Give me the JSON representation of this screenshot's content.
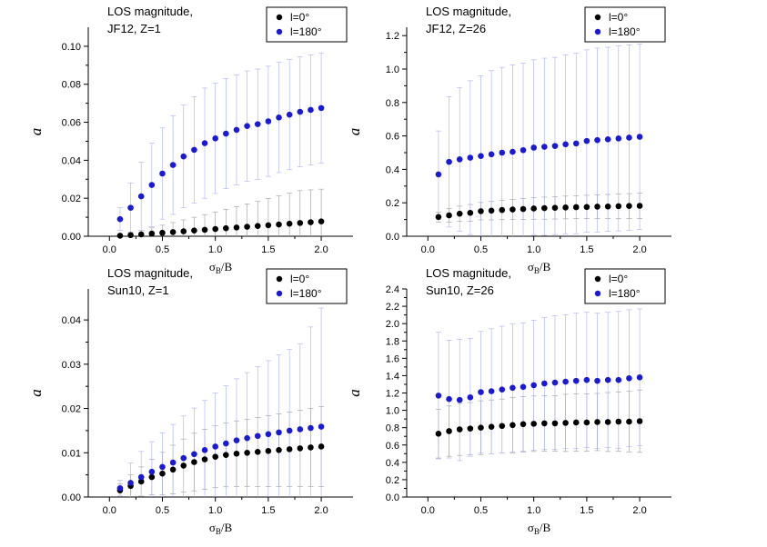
{
  "chart_data": [
    {
      "type": "scatter",
      "annotation": [
        "LOS magnitude,",
        "JF12, Z=1"
      ],
      "xlabel": "σB/B",
      "ylabel": "a",
      "xlim": [
        -0.2,
        2.3
      ],
      "ylim": [
        0,
        0.11
      ],
      "xticks": [
        0.0,
        0.5,
        1.0,
        1.5,
        2.0
      ],
      "xtick_labels": [
        "0.0",
        "0.5",
        "1.0",
        "1.5",
        "2.0"
      ],
      "yticks": [
        0,
        0.02,
        0.04,
        0.06,
        0.08,
        0.1
      ],
      "ytick_labels": [
        "0.00",
        "0.02",
        "0.04",
        "0.06",
        "0.08",
        "0.10"
      ],
      "legend_position": "top-right",
      "x": [
        0.1,
        0.2,
        0.3,
        0.4,
        0.5,
        0.6,
        0.7,
        0.8,
        0.9,
        1.0,
        1.1,
        1.2,
        1.3,
        1.4,
        1.5,
        1.6,
        1.7,
        1.8,
        1.9,
        2.0
      ],
      "series": [
        {
          "name": "l=0°",
          "color": "#000000",
          "values": [
            0.0003,
            0.0006,
            0.001,
            0.0014,
            0.0018,
            0.0022,
            0.0026,
            0.003,
            0.0034,
            0.0038,
            0.0042,
            0.0046,
            0.005,
            0.0054,
            0.0058,
            0.0062,
            0.0066,
            0.007,
            0.0074,
            0.0078
          ],
          "errors": [
            0.0008,
            0.0015,
            0.002,
            0.003,
            0.004,
            0.005,
            0.006,
            0.007,
            0.008,
            0.009,
            0.01,
            0.011,
            0.012,
            0.013,
            0.014,
            0.015,
            0.016,
            0.017,
            0.017,
            0.017
          ]
        },
        {
          "name": "l=180°",
          "color": "#1a1ad6",
          "values": [
            0.009,
            0.015,
            0.021,
            0.027,
            0.033,
            0.0375,
            0.042,
            0.0455,
            0.049,
            0.0515,
            0.054,
            0.056,
            0.058,
            0.059,
            0.0605,
            0.0625,
            0.064,
            0.0655,
            0.0665,
            0.0675
          ],
          "errors": [
            0.006,
            0.013,
            0.018,
            0.022,
            0.024,
            0.026,
            0.027,
            0.028,
            0.029,
            0.029,
            0.029,
            0.029,
            0.029,
            0.029,
            0.029,
            0.029,
            0.029,
            0.029,
            0.029,
            0.029
          ]
        }
      ]
    },
    {
      "type": "scatter",
      "annotation": [
        "LOS magnitude,",
        "JF12, Z=26"
      ],
      "xlabel": "σB/B",
      "ylabel": "a",
      "xlim": [
        -0.2,
        2.3
      ],
      "ylim": [
        0,
        1.25
      ],
      "xticks": [
        0.0,
        0.5,
        1.0,
        1.5,
        2.0
      ],
      "xtick_labels": [
        "0.0",
        "0.5",
        "1.0",
        "1.5",
        "2.0"
      ],
      "yticks": [
        0,
        0.2,
        0.4,
        0.6,
        0.8,
        1.0,
        1.2
      ],
      "ytick_labels": [
        "0.0",
        "0.2",
        "0.4",
        "0.6",
        "0.8",
        "1.0",
        "1.2"
      ],
      "legend_position": "top-right",
      "x": [
        0.1,
        0.2,
        0.3,
        0.4,
        0.5,
        0.6,
        0.7,
        0.8,
        0.9,
        1.0,
        1.1,
        1.2,
        1.3,
        1.4,
        1.5,
        1.6,
        1.7,
        1.8,
        1.9,
        2.0
      ],
      "series": [
        {
          "name": "l=0°",
          "color": "#000000",
          "values": [
            0.115,
            0.125,
            0.135,
            0.14,
            0.15,
            0.153,
            0.157,
            0.16,
            0.163,
            0.166,
            0.168,
            0.17,
            0.172,
            0.174,
            0.175,
            0.177,
            0.178,
            0.18,
            0.181,
            0.182
          ],
          "errors": [
            0.03,
            0.04,
            0.045,
            0.05,
            0.052,
            0.055,
            0.057,
            0.06,
            0.062,
            0.064,
            0.066,
            0.067,
            0.068,
            0.069,
            0.07,
            0.071,
            0.072,
            0.073,
            0.074,
            0.075
          ]
        },
        {
          "name": "l=180°",
          "color": "#1a1ad6",
          "values": [
            0.37,
            0.445,
            0.46,
            0.47,
            0.48,
            0.49,
            0.5,
            0.505,
            0.515,
            0.53,
            0.535,
            0.54,
            0.55,
            0.555,
            0.57,
            0.575,
            0.58,
            0.585,
            0.59,
            0.595
          ],
          "errors": [
            0.26,
            0.39,
            0.43,
            0.46,
            0.48,
            0.5,
            0.51,
            0.52,
            0.52,
            0.525,
            0.53,
            0.53,
            0.535,
            0.54,
            0.545,
            0.55,
            0.55,
            0.553,
            0.555,
            0.555
          ]
        }
      ]
    },
    {
      "type": "scatter",
      "annotation": [
        "LOS magnitude,",
        "Sun10, Z=1"
      ],
      "xlabel": "σB/B",
      "ylabel": "a",
      "xlim": [
        -0.2,
        2.3
      ],
      "ylim": [
        0,
        0.047
      ],
      "xticks": [
        0.0,
        0.5,
        1.0,
        1.5,
        2.0
      ],
      "xtick_labels": [
        "0.0",
        "0.5",
        "1.0",
        "1.5",
        "2.0"
      ],
      "yticks": [
        0,
        0.01,
        0.02,
        0.03,
        0.04
      ],
      "ytick_labels": [
        "0.00",
        "0.01",
        "0.02",
        "0.03",
        "0.04"
      ],
      "legend_position": "top-right",
      "x": [
        0.1,
        0.2,
        0.3,
        0.4,
        0.5,
        0.6,
        0.7,
        0.8,
        0.9,
        1.0,
        1.1,
        1.2,
        1.3,
        1.4,
        1.5,
        1.6,
        1.7,
        1.8,
        1.9,
        2.0
      ],
      "series": [
        {
          "name": "l=0°",
          "color": "#000000",
          "values": [
            0.0015,
            0.0025,
            0.0035,
            0.0045,
            0.0053,
            0.0062,
            0.0071,
            0.0079,
            0.0085,
            0.0091,
            0.0095,
            0.0098,
            0.01,
            0.0102,
            0.0104,
            0.0106,
            0.0108,
            0.011,
            0.0112,
            0.0114
          ],
          "errors": [
            0.0015,
            0.0025,
            0.0033,
            0.004,
            0.0048,
            0.0055,
            0.006,
            0.0065,
            0.0068,
            0.007,
            0.0072,
            0.0074,
            0.0076,
            0.0078,
            0.008,
            0.0082,
            0.0084,
            0.0086,
            0.0088,
            0.009
          ]
        },
        {
          "name": "l=180°",
          "color": "#1a1ad6",
          "values": [
            0.002,
            0.0032,
            0.0045,
            0.0057,
            0.0068,
            0.0078,
            0.0088,
            0.0097,
            0.0106,
            0.0114,
            0.0121,
            0.0128,
            0.0133,
            0.0138,
            0.0142,
            0.0146,
            0.015,
            0.0153,
            0.0156,
            0.0159
          ],
          "errors": [
            0.0018,
            0.0045,
            0.0058,
            0.0068,
            0.0077,
            0.0086,
            0.0095,
            0.0104,
            0.0112,
            0.0121,
            0.013,
            0.0139,
            0.0148,
            0.0157,
            0.0166,
            0.0175,
            0.0184,
            0.0193,
            0.0228,
            0.0268
          ]
        }
      ]
    },
    {
      "type": "scatter",
      "annotation": [
        "LOS magnitude,",
        "Sun10, Z=26"
      ],
      "xlabel": "σB/B",
      "ylabel": "a",
      "xlim": [
        -0.2,
        2.3
      ],
      "ylim": [
        0,
        2.4
      ],
      "xticks": [
        0.0,
        0.5,
        1.0,
        1.5,
        2.0
      ],
      "xtick_labels": [
        "0.0",
        "0.5",
        "1.0",
        "1.5",
        "2.0"
      ],
      "yticks": [
        0,
        0.2,
        0.4,
        0.6,
        0.8,
        1.0,
        1.2,
        1.4,
        1.6,
        1.8,
        2.0,
        2.2,
        2.4
      ],
      "ytick_labels": [
        "0.0",
        "0.2",
        "0.4",
        "0.6",
        "0.8",
        "1.0",
        "1.2",
        "1.4",
        "1.6",
        "1.8",
        "2.0",
        "2.2",
        "2.4"
      ],
      "legend_position": "top-right",
      "x": [
        0.1,
        0.2,
        0.3,
        0.4,
        0.5,
        0.6,
        0.7,
        0.8,
        0.9,
        1.0,
        1.1,
        1.2,
        1.3,
        1.4,
        1.5,
        1.6,
        1.7,
        1.8,
        1.9,
        2.0
      ],
      "series": [
        {
          "name": "l=0°",
          "color": "#000000",
          "values": [
            0.73,
            0.76,
            0.78,
            0.79,
            0.8,
            0.81,
            0.82,
            0.83,
            0.84,
            0.845,
            0.85,
            0.85,
            0.855,
            0.86,
            0.86,
            0.865,
            0.865,
            0.87,
            0.87,
            0.875
          ],
          "errors": [
            0.28,
            0.29,
            0.3,
            0.3,
            0.31,
            0.31,
            0.31,
            0.32,
            0.32,
            0.32,
            0.32,
            0.32,
            0.33,
            0.33,
            0.33,
            0.33,
            0.34,
            0.34,
            0.35,
            0.36
          ]
        },
        {
          "name": "l=180°",
          "color": "#1a1ad6",
          "values": [
            1.17,
            1.13,
            1.12,
            1.15,
            1.21,
            1.22,
            1.24,
            1.26,
            1.27,
            1.29,
            1.31,
            1.32,
            1.33,
            1.34,
            1.35,
            1.34,
            1.35,
            1.35,
            1.37,
            1.38
          ],
          "errors": [
            0.73,
            0.68,
            0.7,
            0.68,
            0.7,
            0.72,
            0.73,
            0.74,
            0.74,
            0.75,
            0.76,
            0.77,
            0.77,
            0.78,
            0.78,
            0.78,
            0.78,
            0.79,
            0.79,
            0.79
          ]
        }
      ]
    }
  ]
}
